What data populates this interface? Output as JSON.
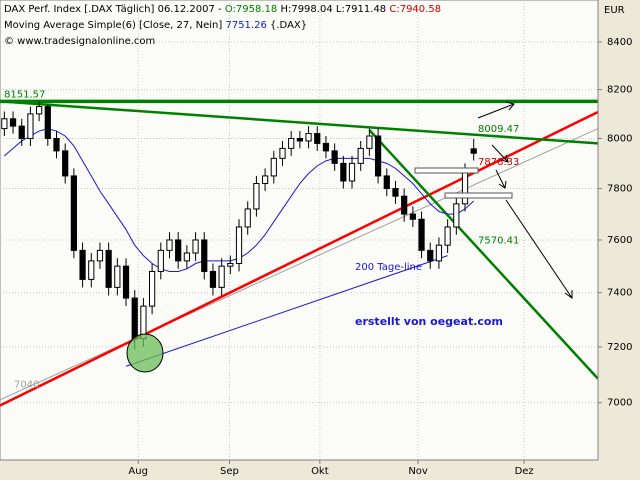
{
  "chart_data": {
    "type": "candlestick",
    "header": {
      "title": "DAX Perf. Index [.DAX  Täglich]",
      "date": "06.12.2007",
      "sep": "-",
      "o": "O:7958.18",
      "h": "H:7998.04",
      "l": "L:7911.48",
      "c": "C:7940.58",
      "indicator": "Moving Average Simple(6) [Close, 27, Nein]",
      "indicator_value": "7751.26",
      "indicator_ref": "{.DAX}",
      "source": "© www.tradesignalonline.com"
    },
    "currency": "EUR",
    "annotation": "erstellt von oegeat.com",
    "line_label": "200 Tage-line",
    "up_color": "#ffffff",
    "down_color": "#000000",
    "open": [
      8040,
      8080,
      8050,
      8000,
      8100,
      8130,
      8000,
      7950,
      7850,
      7560,
      7450,
      7520,
      7560,
      7420,
      7500,
      7380,
      7230,
      7350,
      7480,
      7560,
      7600,
      7520,
      7550,
      7600,
      7480,
      7420,
      7500,
      7510,
      7650,
      7720,
      7820,
      7850,
      7920,
      7960,
      8000,
      7990,
      8020,
      7980,
      7950,
      7900,
      7830,
      7900,
      7960,
      8010,
      7850,
      7800,
      7770,
      7700,
      7680,
      7560,
      7520,
      7580,
      7650,
      7740,
      7958.18
    ],
    "high": [
      8110,
      8110,
      8080,
      8130,
      8151.57,
      8140,
      8030,
      7980,
      7880,
      7590,
      7550,
      7590,
      7590,
      7530,
      7530,
      7410,
      7380,
      7510,
      7590,
      7630,
      7630,
      7580,
      7630,
      7630,
      7510,
      7530,
      7540,
      7680,
      7750,
      7850,
      7880,
      7950,
      7990,
      8030,
      8030,
      8050,
      8050,
      8010,
      7980,
      7930,
      7930,
      7990,
      8040,
      8040,
      7880,
      7830,
      7800,
      7730,
      7710,
      7590,
      7610,
      7680,
      7770,
      7900,
      7998.04
    ],
    "low": [
      8010,
      8020,
      7970,
      7970,
      8070,
      7970,
      7920,
      7820,
      7530,
      7420,
      7420,
      7490,
      7390,
      7390,
      7350,
      7190,
      7200,
      7320,
      7450,
      7530,
      7490,
      7490,
      7520,
      7450,
      7390,
      7390,
      7470,
      7480,
      7620,
      7690,
      7790,
      7820,
      7890,
      7930,
      7960,
      7960,
      7950,
      7920,
      7870,
      7800,
      7800,
      7870,
      7930,
      7820,
      7770,
      7740,
      7670,
      7650,
      7530,
      7490,
      7490,
      7550,
      7620,
      7710,
      7911.48
    ],
    "close": [
      8080,
      8050,
      8000,
      8100,
      8130,
      8000,
      7950,
      7850,
      7560,
      7450,
      7520,
      7560,
      7420,
      7500,
      7380,
      7230,
      7350,
      7480,
      7560,
      7600,
      7520,
      7550,
      7600,
      7480,
      7420,
      7500,
      7510,
      7650,
      7720,
      7820,
      7850,
      7920,
      7960,
      8000,
      7990,
      8020,
      7980,
      7950,
      7900,
      7830,
      7900,
      7960,
      8010,
      7850,
      7800,
      7770,
      7700,
      7680,
      7560,
      7520,
      7580,
      7650,
      7740,
      7870,
      7940.58
    ],
    "ma": {
      "color": "#1a1acc",
      "values": [
        7930,
        7960,
        7990,
        8010,
        8030,
        8040,
        8030,
        8010,
        7970,
        7910,
        7850,
        7790,
        7740,
        7690,
        7640,
        7580,
        7540,
        7510,
        7490,
        7480,
        7480,
        7490,
        7510,
        7520,
        7520,
        7520,
        7520,
        7530,
        7550,
        7580,
        7620,
        7670,
        7720,
        7770,
        7820,
        7860,
        7890,
        7910,
        7920,
        7920,
        7920,
        7920,
        7920,
        7910,
        7900,
        7880,
        7850,
        7820,
        7780,
        7740,
        7710,
        7700,
        7700,
        7720,
        7751.26
      ]
    },
    "trendlines": [
      {
        "color": "#a0a0a0",
        "width": 1,
        "x": [
          -0.5,
          68.3
        ],
        "y": [
          7010,
          8040
        ]
      },
      {
        "color": "#1a1acc",
        "width": 1,
        "x": [
          14,
          51
        ],
        "y": [
          7130,
          7540
        ]
      },
      {
        "color": "#ff0000",
        "width": 2.5,
        "x": [
          -0.5,
          68.3
        ],
        "y": [
          6990,
          8108
        ]
      },
      {
        "color": "#008000",
        "width": 2.5,
        "x": [
          -0.5,
          68.3
        ],
        "y": [
          8151.57,
          7980
        ]
      },
      {
        "color": "#008000",
        "width": 2.5,
        "x": [
          42,
          68.3
        ],
        "y": [
          8034,
          7085
        ]
      },
      {
        "color": "#008000",
        "width": 3.5,
        "x": [
          -0.5,
          68.3
        ],
        "y": [
          8151.57,
          8151.57
        ]
      }
    ],
    "levels": [
      {
        "value": 8151.57,
        "color": "#008000"
      },
      {
        "value": 8009.47,
        "color": "#008000"
      },
      {
        "value": 7878.33,
        "color": "#cc0000"
      },
      {
        "value": 7570.41,
        "color": "#008000"
      },
      {
        "value": 7040,
        "color": "#a0a0a0"
      }
    ],
    "xlim": [
      -0.5,
      68.3
    ],
    "xticks": [
      {
        "value": 15.4,
        "label": "Aug"
      },
      {
        "value": 25.9,
        "label": "Sep"
      },
      {
        "value": 36.3,
        "label": "Okt"
      },
      {
        "value": 47.6,
        "label": "Nov"
      },
      {
        "value": 59.8,
        "label": "Dez"
      }
    ],
    "ylim": [
      6800,
      8580
    ],
    "yticks": [
      7000,
      7200,
      7400,
      7600,
      7800,
      8000,
      8200,
      8400
    ],
    "log_y": true,
    "grid": true
  }
}
